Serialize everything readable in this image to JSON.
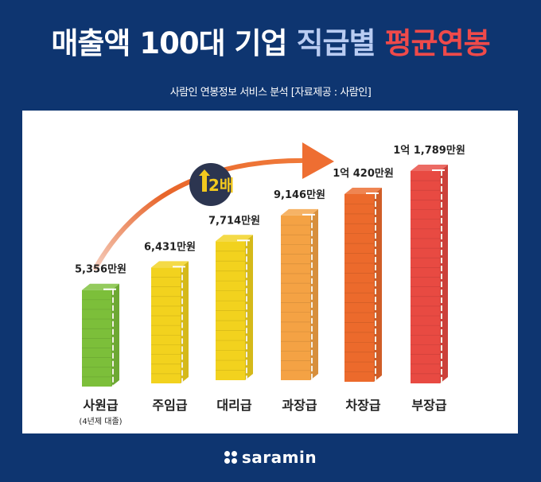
{
  "header": {
    "title_part1": "매출액 100대 기업",
    "title_part2": "직급별",
    "title_part3": "평균연봉",
    "subtitle": "사람인 연봉정보 서비스 분석 [자료제공 : 사람인]"
  },
  "chart_data": {
    "type": "bar",
    "title": "매출액 100대 기업 직급별 평균연봉",
    "xlabel": "",
    "ylabel": "",
    "unit": "만원",
    "categories": [
      "사원급",
      "주임급",
      "대리급",
      "과장급",
      "차장급",
      "부장급"
    ],
    "category_notes": [
      "(4년제 대졸)",
      "",
      "",
      "",
      "",
      ""
    ],
    "values": [
      5356,
      6431,
      7714,
      9146,
      10420,
      11789
    ],
    "value_labels": [
      "5,356만원",
      "6,431만원",
      "7,714만원",
      "9,146만원",
      "1억 420만원",
      "1억 1,789만원"
    ],
    "colors": [
      "#7cbf3a",
      "#f2d21e",
      "#f2d21e",
      "#f4a244",
      "#ec6a2c",
      "#e84a42"
    ],
    "annotation": {
      "text": "2배",
      "icon": "up-arrow-icon",
      "from": "사원급",
      "to": "차장급"
    },
    "grid": false,
    "legend": "none"
  },
  "footer": {
    "brand": "saramin",
    "logo_icon": "four-dots-icon"
  }
}
